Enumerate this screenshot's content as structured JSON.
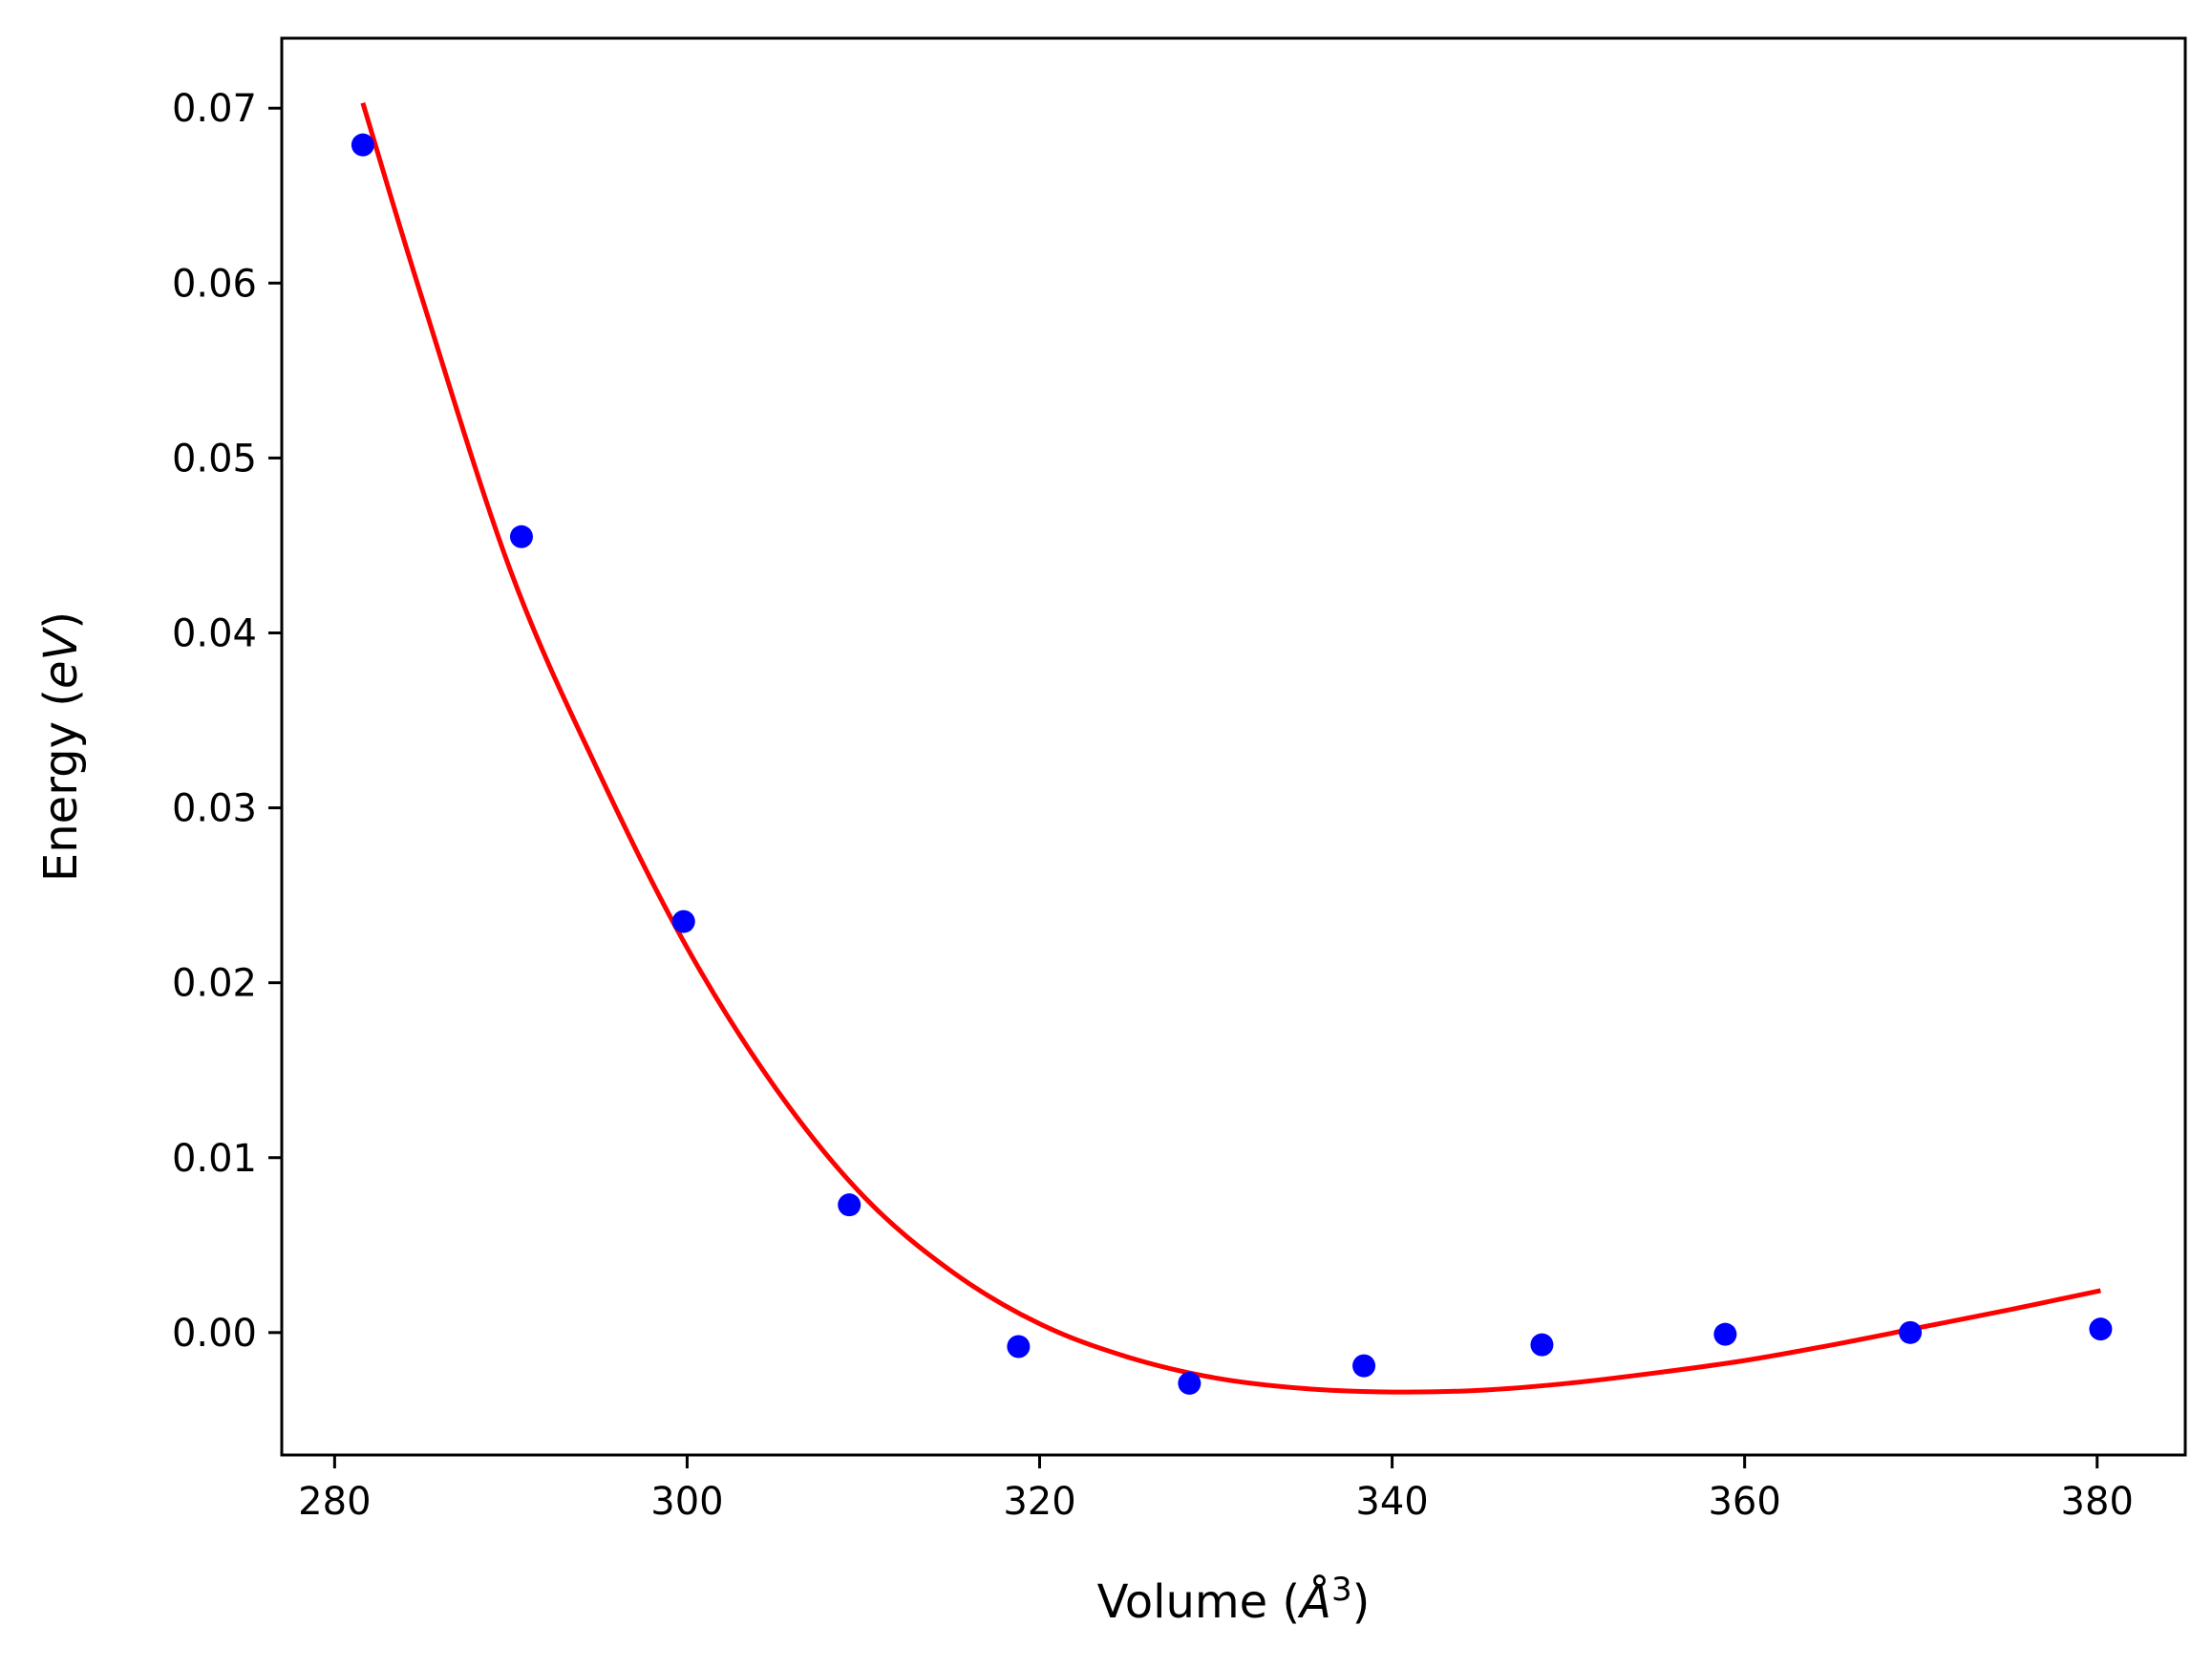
{
  "chart_data": {
    "type": "scatter",
    "title": "",
    "xlabel": {
      "prefix": "Volume (",
      "symbol": "Å",
      "superscript": "3",
      "suffix": ")"
    },
    "ylabel": {
      "prefix": "Energy (",
      "symbol": "eV",
      "suffix": ")"
    },
    "xlim": [
      277,
      385
    ],
    "ylim": [
      -0.007,
      0.074
    ],
    "xticks": [
      280,
      300,
      320,
      340,
      360,
      380
    ],
    "yticks": [
      0.0,
      0.01,
      0.02,
      0.03,
      0.04,
      0.05,
      0.06,
      0.07
    ],
    "xtick_labels": [
      "280",
      "300",
      "320",
      "340",
      "360",
      "380"
    ],
    "ytick_labels": [
      "0.00",
      "0.01",
      "0.02",
      "0.03",
      "0.04",
      "0.05",
      "0.06",
      "0.07"
    ],
    "grid": false,
    "legend": "none",
    "series": [
      {
        "kind": "scatter",
        "color": "#0000ff",
        "points": [
          {
            "x": 281.6,
            "y": 0.0679
          },
          {
            "x": 290.6,
            "y": 0.0455
          },
          {
            "x": 299.8,
            "y": 0.0235
          },
          {
            "x": 309.2,
            "y": 0.0073
          },
          {
            "x": 318.8,
            "y": -0.0008
          },
          {
            "x": 328.5,
            "y": -0.0029
          },
          {
            "x": 338.4,
            "y": -0.0019
          },
          {
            "x": 348.5,
            "y": -0.0007
          },
          {
            "x": 358.9,
            "y": -0.0001
          },
          {
            "x": 369.4,
            "y": 0.0
          },
          {
            "x": 380.2,
            "y": 0.0002
          }
        ]
      },
      {
        "kind": "fit-line",
        "color": "#ff0000",
        "points": [
          {
            "x": 281.6,
            "y": 0.0703
          },
          {
            "x": 285.0,
            "y": 0.059
          },
          {
            "x": 290.0,
            "y": 0.0435
          },
          {
            "x": 295.0,
            "y": 0.032
          },
          {
            "x": 300.0,
            "y": 0.022
          },
          {
            "x": 305.0,
            "y": 0.014
          },
          {
            "x": 310.0,
            "y": 0.0078
          },
          {
            "x": 315.0,
            "y": 0.0035
          },
          {
            "x": 320.0,
            "y": 0.0005
          },
          {
            "x": 325.0,
            "y": -0.0014
          },
          {
            "x": 330.0,
            "y": -0.0026
          },
          {
            "x": 335.0,
            "y": -0.0032
          },
          {
            "x": 340.0,
            "y": -0.0034
          },
          {
            "x": 345.0,
            "y": -0.0033
          },
          {
            "x": 350.0,
            "y": -0.0029
          },
          {
            "x": 355.0,
            "y": -0.0023
          },
          {
            "x": 360.0,
            "y": -0.0016
          },
          {
            "x": 365.0,
            "y": -0.0007
          },
          {
            "x": 370.0,
            "y": 0.0003
          },
          {
            "x": 375.0,
            "y": 0.0013
          },
          {
            "x": 380.2,
            "y": 0.0024
          }
        ]
      }
    ]
  }
}
